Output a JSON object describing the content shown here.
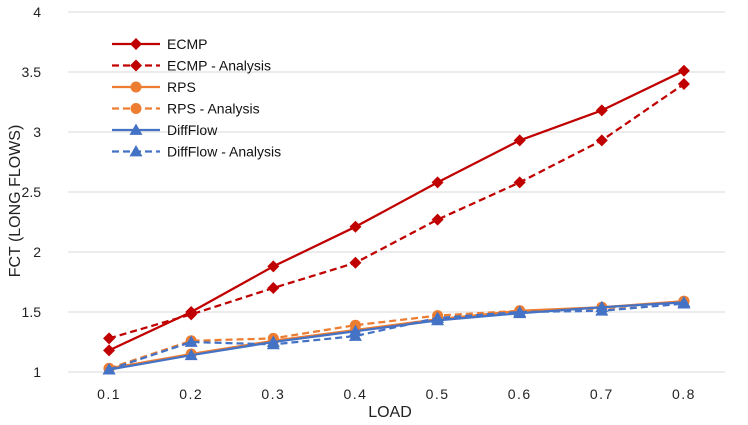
{
  "chart_data": {
    "type": "line",
    "title": "",
    "xlabel": "LOAD",
    "ylabel": "FCT (LONG FLOWS)",
    "x": [
      0.1,
      0.2,
      0.3,
      0.4,
      0.5,
      0.6,
      0.7,
      0.8
    ],
    "x_tick_labels": [
      "0.1",
      "0.2",
      "0.3",
      "0.4",
      "0.5",
      "0.6",
      "0.7",
      "0.8"
    ],
    "ylim": [
      1,
      4
    ],
    "y_ticks": [
      1,
      1.5,
      2,
      2.5,
      3,
      3.5,
      4
    ],
    "y_tick_labels": [
      "1",
      "1.5",
      "2",
      "2.5",
      "3",
      "3.5",
      "4"
    ],
    "grid": "horizontal",
    "legend_position": "top-left",
    "series": [
      {
        "name": "ECMP",
        "color": "#C00000",
        "dash": "solid",
        "marker": "diamond",
        "values": [
          1.18,
          1.5,
          1.88,
          2.21,
          2.58,
          2.93,
          3.18,
          3.51
        ]
      },
      {
        "name": "ECMP - Analysis",
        "color": "#C00000",
        "dash": "dashed",
        "marker": "diamond",
        "values": [
          1.28,
          1.48,
          1.7,
          1.91,
          2.27,
          2.58,
          2.93,
          3.4
        ]
      },
      {
        "name": "RPS",
        "color": "#ED7D31",
        "dash": "solid",
        "marker": "circle",
        "values": [
          1.03,
          1.15,
          1.26,
          1.35,
          1.44,
          1.51,
          1.54,
          1.59
        ]
      },
      {
        "name": "RPS - Analysis",
        "color": "#ED7D31",
        "dash": "dashed",
        "marker": "circle",
        "values": [
          1.03,
          1.26,
          1.28,
          1.39,
          1.47,
          1.51,
          1.53,
          1.59
        ]
      },
      {
        "name": "DiffFlow",
        "color": "#4472C4",
        "dash": "solid",
        "marker": "triangle",
        "values": [
          1.02,
          1.14,
          1.25,
          1.34,
          1.43,
          1.49,
          1.54,
          1.58
        ]
      },
      {
        "name": "DiffFlow - Analysis",
        "color": "#4472C4",
        "dash": "dashed",
        "marker": "triangle",
        "values": [
          1.02,
          1.25,
          1.23,
          1.3,
          1.45,
          1.5,
          1.51,
          1.57
        ]
      }
    ]
  }
}
